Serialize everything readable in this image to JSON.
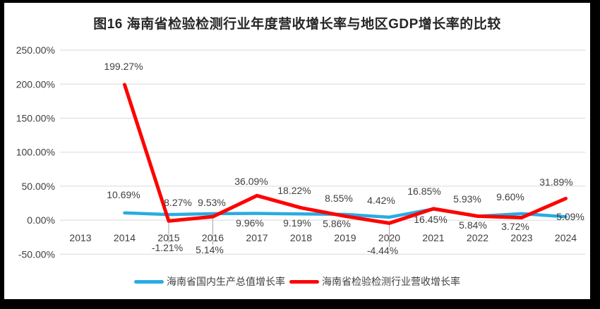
{
  "figure_label": "图16",
  "chart_data": {
    "type": "line",
    "title": "图16  海南省检验检测行业年度营收增长率与地区GDP增长率的比较",
    "categories": [
      "2013",
      "2014",
      "2015",
      "2016",
      "2017",
      "2018",
      "2019",
      "2020",
      "2021",
      "2022",
      "2023",
      "2024"
    ],
    "series": [
      {
        "name": "海南省国内生产总值增长率",
        "color": "#29ABE2",
        "values": [
          null,
          10.69,
          8.27,
          9.53,
          9.96,
          9.19,
          8.55,
          4.42,
          16.45,
          5.84,
          9.6,
          5.09
        ],
        "labels": [
          null,
          "10.69%",
          "8.27%",
          "9.53%",
          "9.96%",
          "9.19%",
          "8.55%",
          "4.42%",
          "16.45%",
          "5.84%",
          "9.60%",
          "5.09%"
        ]
      },
      {
        "name": "海南省检验检测行业营收增长率",
        "color": "#FF0000",
        "values": [
          null,
          199.27,
          -1.21,
          5.14,
          36.09,
          18.22,
          5.86,
          -4.44,
          16.85,
          5.93,
          3.72,
          31.89
        ],
        "labels": [
          null,
          "199.27%",
          "-1.21%",
          "5.14%",
          "36.09%",
          "18.22%",
          "5.86%",
          "-4.44%",
          "16.85%",
          "5.93%",
          "3.72%",
          "31.89%"
        ]
      }
    ],
    "y_axis": {
      "tick_labels": [
        "250.00%",
        "200.00%",
        "150.00%",
        "100.00%",
        "50.00%",
        "0.00%",
        "-50.00%"
      ],
      "tick_values": [
        250,
        200,
        150,
        100,
        50,
        0,
        -50
      ],
      "min": -50,
      "max": 250,
      "step": 50
    },
    "grid": true,
    "legend_position": "bottom",
    "colors": {
      "gridline": "#D9D9D9",
      "axis_text": "#404040",
      "label_text": "#404040",
      "leader_line": "#A6A6A6"
    }
  }
}
